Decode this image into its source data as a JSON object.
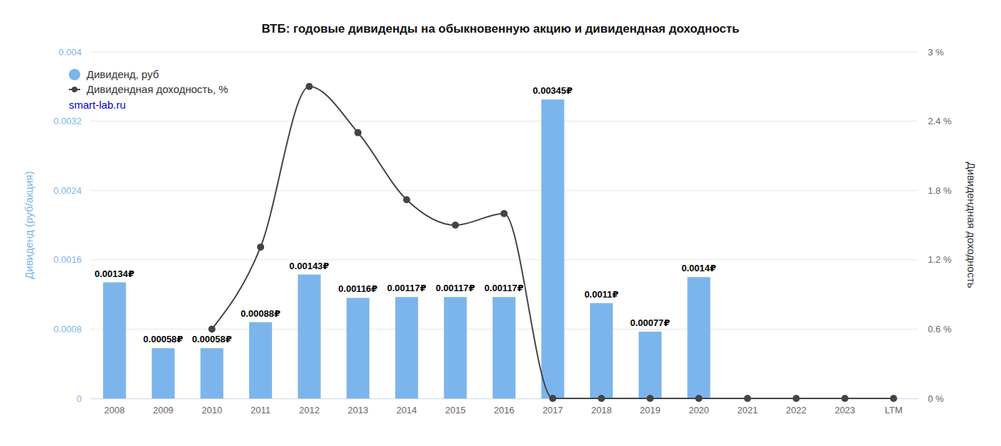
{
  "chart_data": {
    "type": "bar",
    "title": "ВТБ: годовые дивиденды на обыкновенную акцию и дивидендная доходность",
    "y_label": "Дивиденд (руб/акция)",
    "y2_label": "Дивидендная доходность",
    "annotations": [
      "smart-lab.ru"
    ],
    "categories": [
      "2008",
      "2009",
      "2010",
      "2011",
      "2012",
      "2013",
      "2014",
      "2015",
      "2016",
      "2017",
      "2018",
      "2019",
      "2020",
      "2021",
      "2022",
      "2023",
      "LTM"
    ],
    "ylim": [
      0,
      0.004
    ],
    "yticks": [
      0,
      0.0008,
      0.0016,
      0.0024,
      0.0032,
      0.004
    ],
    "y2lim": [
      0,
      3
    ],
    "y2ticks": [
      {
        "value": 0,
        "label": "0 %"
      },
      {
        "value": 0.6,
        "label": "0.6 %"
      },
      {
        "value": 1.2,
        "label": "1.2 %"
      },
      {
        "value": 1.8,
        "label": "1.8 %"
      },
      {
        "value": 2.4,
        "label": "2.4 %"
      },
      {
        "value": 3,
        "label": "3 %"
      }
    ],
    "grid": true,
    "legend": "top-left",
    "series": [
      {
        "name": "Дивиденд, руб",
        "type": "bar",
        "color": "#7cb5ec",
        "data_labels": true,
        "values": [
          0.00134,
          0.00058,
          0.00058,
          0.00088,
          0.00143,
          0.00116,
          0.00117,
          0.00117,
          0.00117,
          0.00345,
          0.0011,
          0.00077,
          0.0014,
          null,
          null,
          null,
          null
        ],
        "value_labels": [
          "0.00134₽",
          "0.00058₽",
          "0.00058₽",
          "0.00088₽",
          "0.00143₽",
          "0.00116₽",
          "0.00117₽",
          "0.00117₽",
          "0.00117₽",
          "0.00345₽",
          "0.0011₽",
          "0.00077₽",
          "0.0014₽",
          null,
          null,
          null,
          null
        ]
      },
      {
        "name": "Дивидендная доходность, %",
        "type": "line",
        "color": "#434348",
        "marker": "circle",
        "axis": "y2",
        "values": [
          null,
          null,
          0.6,
          1.31,
          2.7,
          2.3,
          1.72,
          1.5,
          1.6,
          0,
          0,
          0,
          0,
          0,
          0,
          0,
          0
        ]
      }
    ]
  }
}
